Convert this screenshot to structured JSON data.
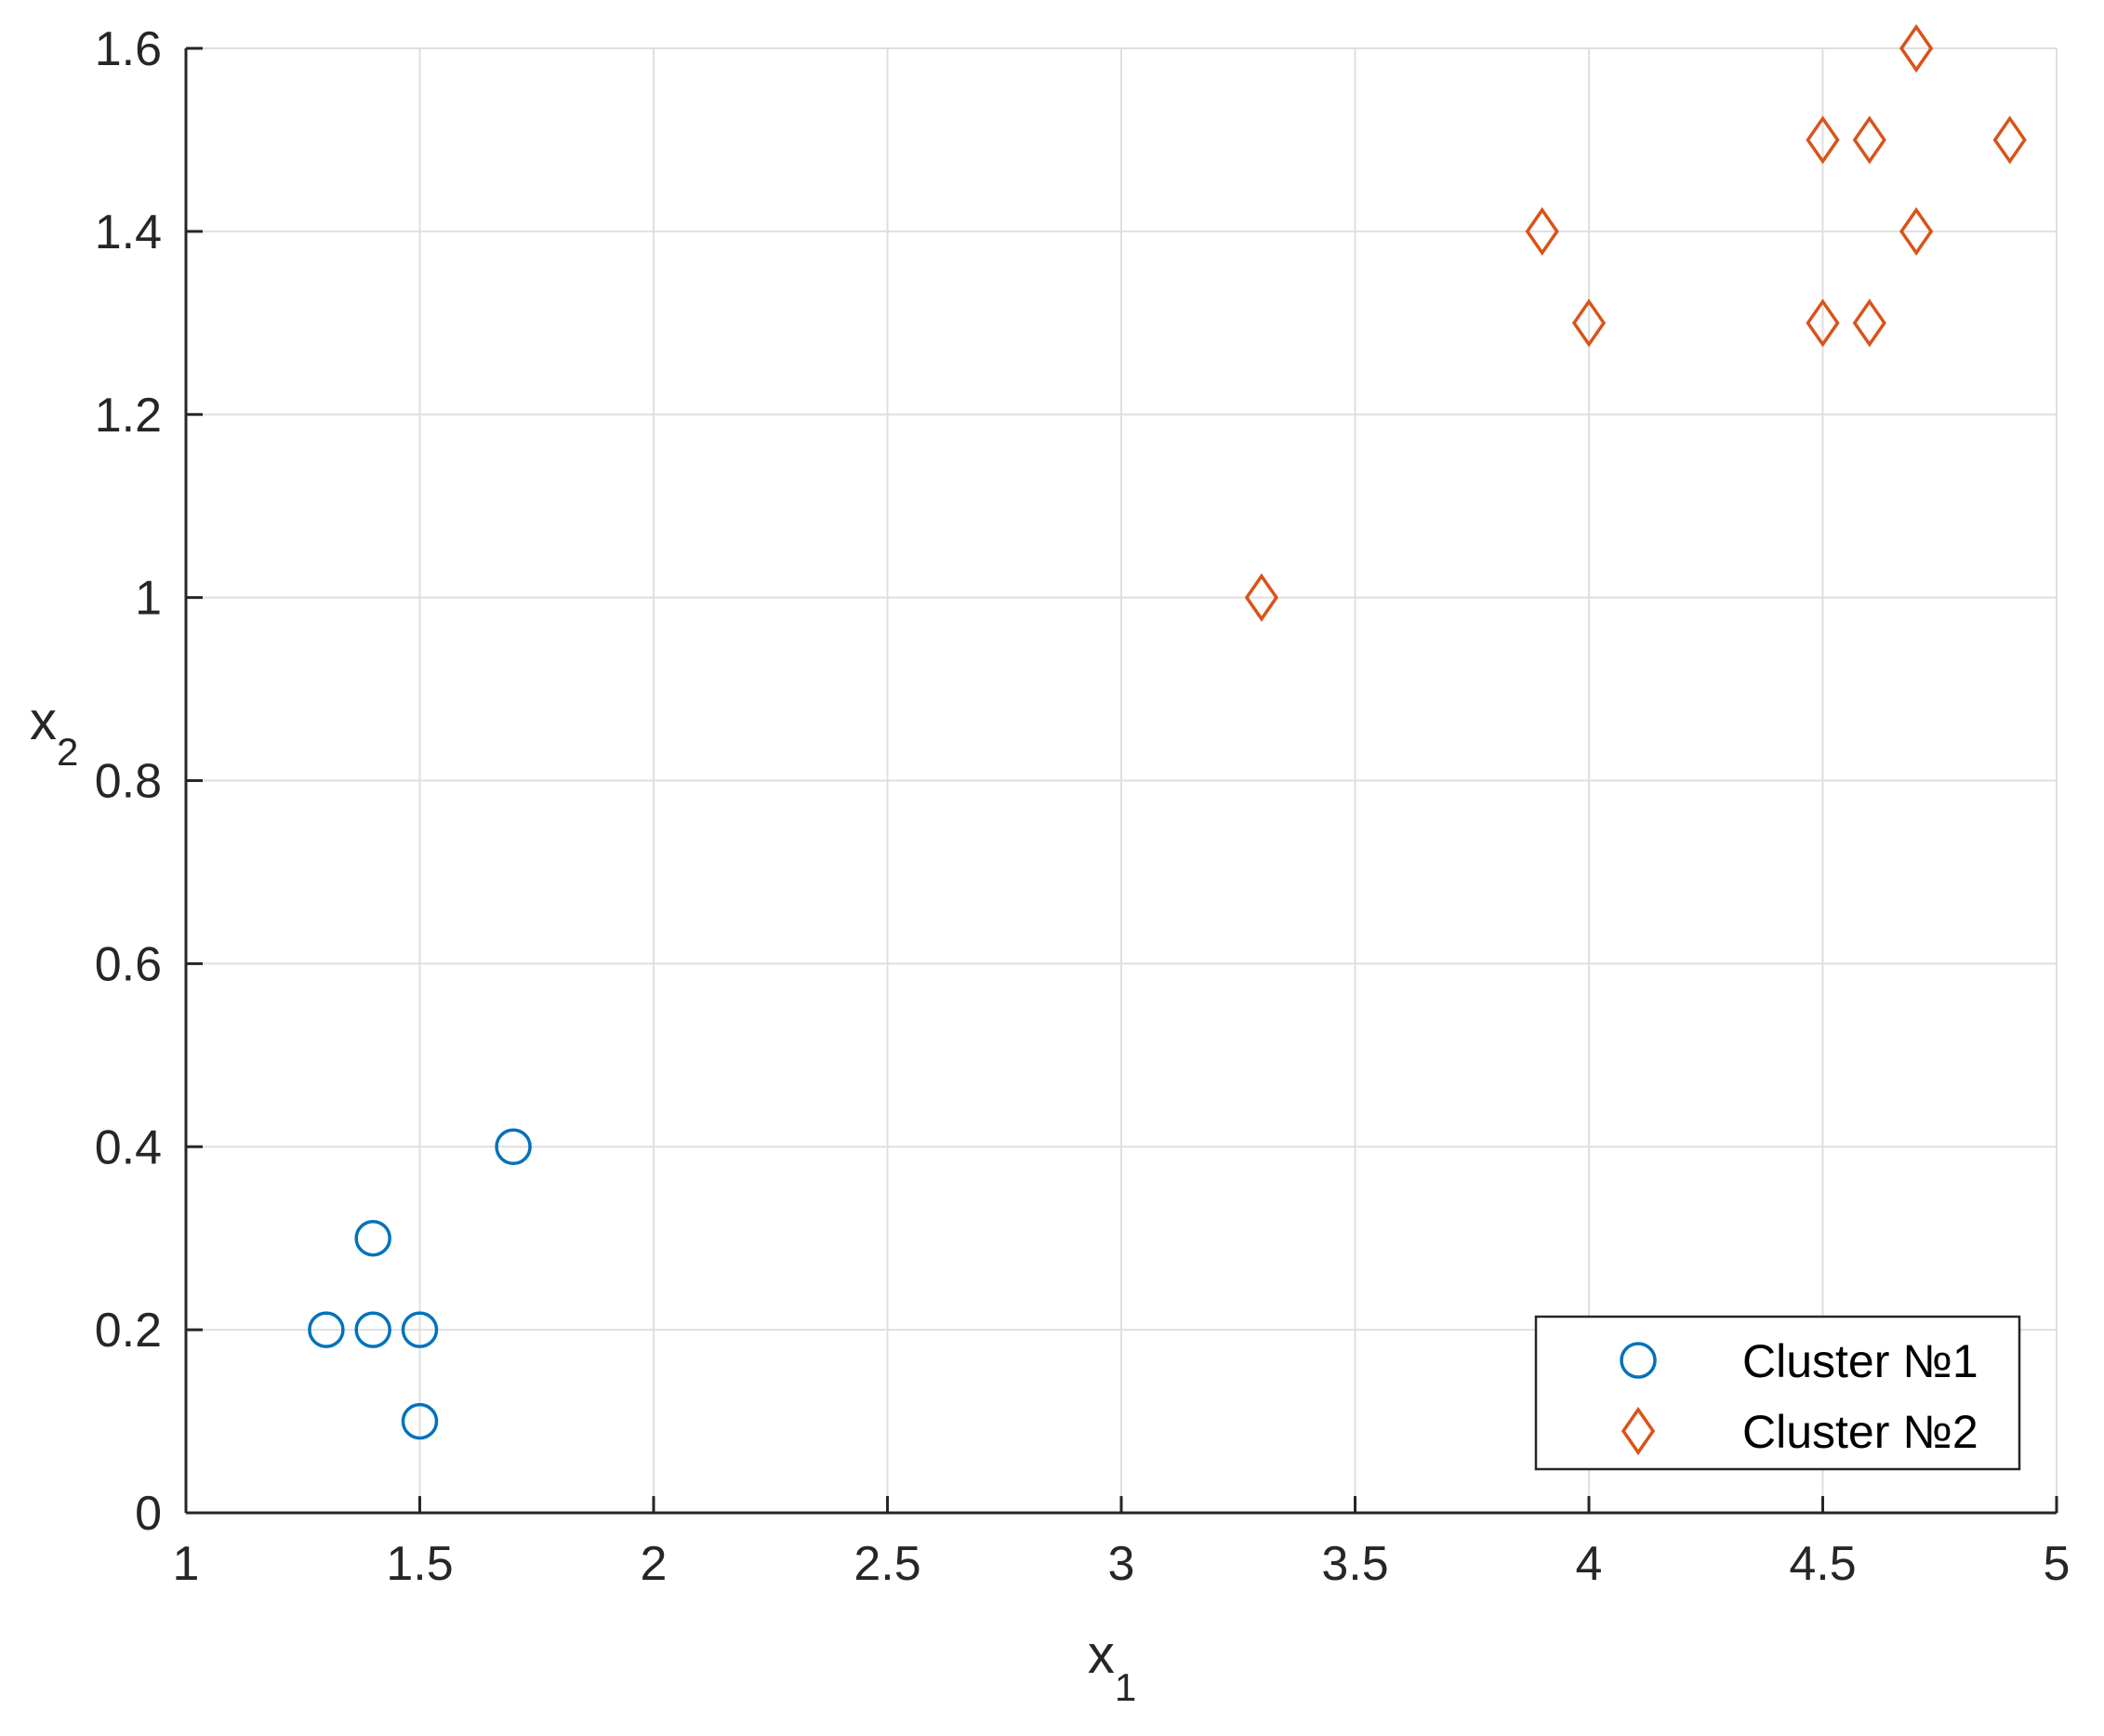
{
  "chart_data": {
    "type": "scatter",
    "title": "",
    "xlabel": {
      "base": "x",
      "sub": "1"
    },
    "ylabel": {
      "base": "x",
      "sub": "2"
    },
    "xlim": [
      1,
      5
    ],
    "ylim": [
      0,
      1.6
    ],
    "xticks": [
      1,
      1.5,
      2,
      2.5,
      3,
      3.5,
      4,
      4.5,
      5
    ],
    "xtick_labels": [
      "1",
      "1.5",
      "2",
      "2.5",
      "3",
      "3.5",
      "4",
      "4.5",
      "5"
    ],
    "yticks": [
      0,
      0.2,
      0.4,
      0.6,
      0.8,
      1,
      1.2,
      1.4,
      1.6
    ],
    "ytick_labels": [
      "0",
      "0.2",
      "0.4",
      "0.6",
      "0.8",
      "1",
      "1.2",
      "1.4",
      "1.6"
    ],
    "grid": true,
    "legend_position": "bottom-right",
    "series": [
      {
        "name": "Cluster №1",
        "marker": "circle",
        "color": "#0072BD",
        "points": [
          [
            1.3,
            0.2
          ],
          [
            1.4,
            0.2
          ],
          [
            1.4,
            0.3
          ],
          [
            1.5,
            0.2
          ],
          [
            1.5,
            0.1
          ],
          [
            1.7,
            0.4
          ]
        ]
      },
      {
        "name": "Cluster №2",
        "marker": "diamond",
        "color": "#D95319",
        "points": [
          [
            3.3,
            1.0
          ],
          [
            3.9,
            1.4
          ],
          [
            4.0,
            1.3
          ],
          [
            4.5,
            1.5
          ],
          [
            4.5,
            1.3
          ],
          [
            4.6,
            1.5
          ],
          [
            4.6,
            1.3
          ],
          [
            4.7,
            1.6
          ],
          [
            4.7,
            1.4
          ],
          [
            4.9,
            1.5
          ]
        ]
      }
    ]
  }
}
